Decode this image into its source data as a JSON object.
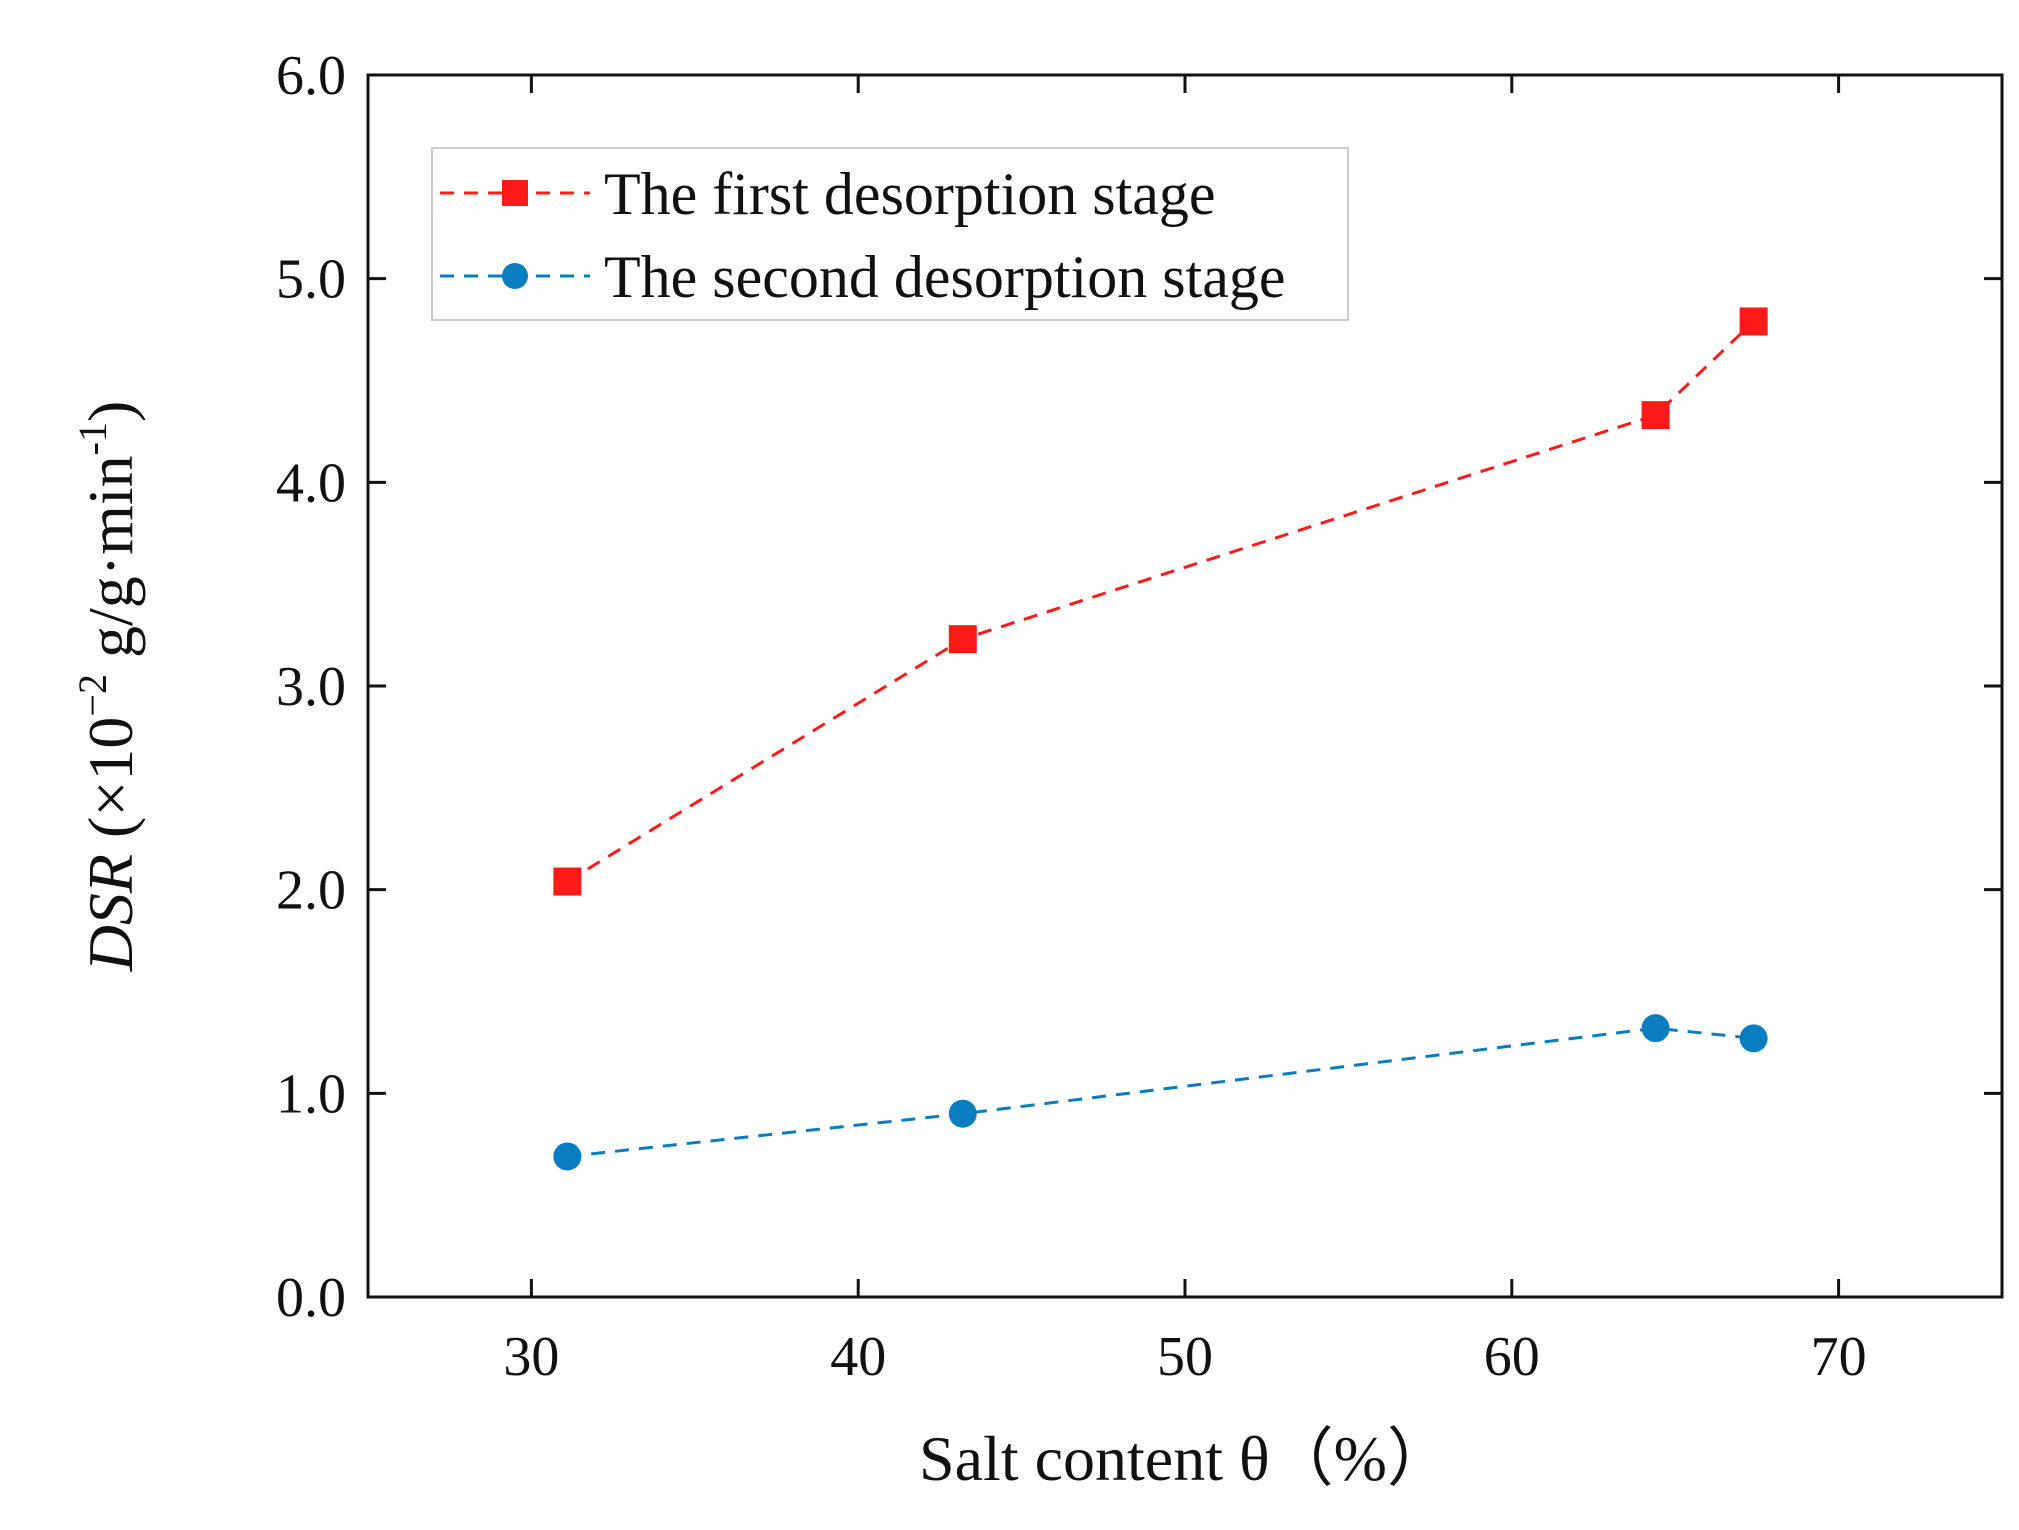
{
  "colors": {
    "series1": "#ff1a1a",
    "series2": "#0a7cc0",
    "axis": "#111111"
  },
  "chart_data": {
    "type": "line",
    "title": "",
    "xlabel": "Salt content θ（%）",
    "ylabel": "DSR (×10⁻² g/g·min⁻¹)",
    "ylabel_parts": {
      "symbol": "DSR",
      "open": " (×10",
      "exp1": "−2",
      "unit": " g/g·min",
      "exp2": "-1",
      "close": ")"
    },
    "xlim": [
      25,
      75
    ],
    "ylim": [
      0,
      6
    ],
    "xticks": [
      30,
      40,
      50,
      60,
      70
    ],
    "yticks": [
      0,
      1,
      2,
      3,
      4,
      5,
      6
    ],
    "xtick_labels": [
      "30",
      "40",
      "50",
      "60",
      "70"
    ],
    "ytick_labels": [
      "0.0",
      "1.0",
      "2.0",
      "3.0",
      "4.0",
      "5.0",
      "6.0"
    ],
    "grid": false,
    "legend_position": "top-left",
    "series": [
      {
        "name": "The first desorption stage",
        "marker": "square",
        "line": "dashed",
        "x": [
          31.1,
          43.2,
          64.4,
          67.4
        ],
        "values": [
          2.04,
          3.23,
          4.33,
          4.79
        ]
      },
      {
        "name": "The second desorption stage",
        "marker": "circle",
        "line": "dashed",
        "x": [
          31.1,
          43.2,
          64.4,
          67.4
        ],
        "values": [
          0.69,
          0.9,
          1.32,
          1.27
        ]
      }
    ]
  }
}
